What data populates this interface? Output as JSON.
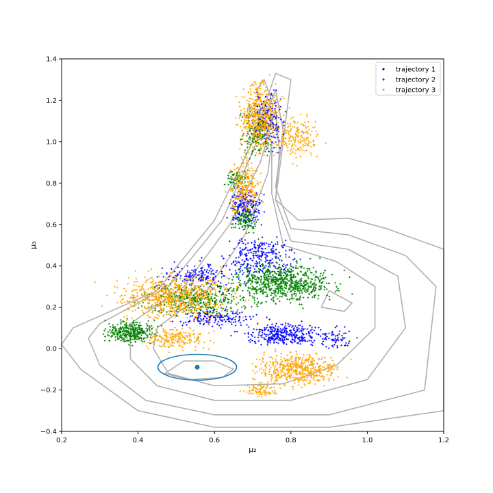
{
  "chart_data": {
    "type": "scatter",
    "xlabel": "μ₂",
    "ylabel": "μ₃",
    "xlim": [
      0.2,
      1.2
    ],
    "ylim": [
      -0.4,
      1.4
    ],
    "xticks": [
      "0.2",
      "0.4",
      "0.6",
      "0.8",
      "1.0",
      "1.2"
    ],
    "yticks": [
      "−0.4",
      "−0.2",
      "0.0",
      "0.2",
      "0.4",
      "0.6",
      "0.8",
      "1.0",
      "1.2",
      "1.4"
    ],
    "xtick_values": [
      0.2,
      0.4,
      0.6,
      0.8,
      1.0,
      1.2
    ],
    "ytick_values": [
      -0.4,
      -0.2,
      0.0,
      0.2,
      0.4,
      0.6,
      0.8,
      1.0,
      1.2,
      1.4
    ],
    "grid": false,
    "legend": {
      "placement": "top-right",
      "entries": [
        {
          "label": "trajectory 1",
          "color": "#0000ff"
        },
        {
          "label": "trajectory 2",
          "color": "#008000"
        },
        {
          "label": "trajectory 3",
          "color": "#ffa500"
        }
      ]
    },
    "background_contours": {
      "color": "#b0b0b0",
      "levels": [
        [
          [
            0.23,
            0.1
          ],
          [
            0.45,
            0.28
          ],
          [
            0.6,
            0.62
          ],
          [
            0.7,
            1.0
          ],
          [
            0.76,
            1.33
          ],
          [
            0.8,
            1.3
          ],
          [
            0.78,
            1.0
          ],
          [
            0.76,
            0.72
          ],
          [
            0.82,
            0.62
          ],
          [
            0.95,
            0.63
          ],
          [
            1.05,
            0.58
          ],
          [
            1.2,
            0.48
          ],
          [
            1.2,
            -0.3
          ],
          [
            0.9,
            -0.38
          ],
          [
            0.6,
            -0.38
          ],
          [
            0.4,
            -0.3
          ],
          [
            0.25,
            -0.1
          ],
          [
            0.2,
            0.02
          ]
        ],
        [
          [
            0.3,
            0.12
          ],
          [
            0.48,
            0.3
          ],
          [
            0.62,
            0.62
          ],
          [
            0.7,
            0.95
          ],
          [
            0.76,
            1.25
          ],
          [
            0.78,
            1.05
          ],
          [
            0.76,
            0.78
          ],
          [
            0.8,
            0.58
          ],
          [
            0.95,
            0.55
          ],
          [
            1.1,
            0.45
          ],
          [
            1.18,
            0.3
          ],
          [
            1.15,
            -0.2
          ],
          [
            0.9,
            -0.32
          ],
          [
            0.6,
            -0.32
          ],
          [
            0.42,
            -0.25
          ],
          [
            0.3,
            -0.08
          ],
          [
            0.27,
            0.05
          ]
        ],
        [
          [
            0.38,
            0.12
          ],
          [
            0.52,
            0.3
          ],
          [
            0.64,
            0.6
          ],
          [
            0.72,
            0.9
          ],
          [
            0.76,
            1.15
          ],
          [
            0.77,
            0.95
          ],
          [
            0.76,
            0.72
          ],
          [
            0.8,
            0.52
          ],
          [
            0.95,
            0.48
          ],
          [
            1.08,
            0.35
          ],
          [
            1.1,
            0.1
          ],
          [
            1.0,
            -0.15
          ],
          [
            0.8,
            -0.25
          ],
          [
            0.6,
            -0.25
          ],
          [
            0.45,
            -0.18
          ],
          [
            0.38,
            -0.05
          ]
        ],
        [
          [
            0.45,
            0.1
          ],
          [
            0.58,
            0.28
          ],
          [
            0.68,
            0.55
          ],
          [
            0.74,
            0.85
          ],
          [
            0.75,
            1.0
          ],
          [
            0.75,
            0.75
          ],
          [
            0.78,
            0.5
          ],
          [
            0.92,
            0.42
          ],
          [
            1.02,
            0.3
          ],
          [
            1.02,
            0.1
          ],
          [
            0.92,
            -0.08
          ],
          [
            0.78,
            -0.17
          ],
          [
            0.6,
            -0.18
          ],
          [
            0.48,
            -0.12
          ],
          [
            0.44,
            0.0
          ]
        ],
        [
          [
            0.9,
            0.28
          ],
          [
            0.96,
            0.22
          ],
          [
            0.94,
            0.18
          ],
          [
            0.88,
            0.2
          ]
        ],
        [
          [
            0.47,
            -0.12
          ],
          [
            0.52,
            -0.06
          ],
          [
            0.6,
            -0.06
          ],
          [
            0.65,
            -0.1
          ],
          [
            0.62,
            -0.14
          ],
          [
            0.53,
            -0.15
          ]
        ],
        [
          [
            0.71,
            1.25
          ],
          [
            0.73,
            1.3
          ],
          [
            0.75,
            1.2
          ],
          [
            0.73,
            1.15
          ]
        ]
      ]
    },
    "series": [
      {
        "name": "trajectory 1",
        "color": "#0000ff",
        "regions": [
          {
            "cx": 0.74,
            "cy": 1.1,
            "rx": 0.04,
            "ry": 0.12,
            "n": 200
          },
          {
            "cx": 0.68,
            "cy": 0.68,
            "rx": 0.04,
            "ry": 0.08,
            "n": 200
          },
          {
            "cx": 0.72,
            "cy": 0.44,
            "rx": 0.08,
            "ry": 0.1,
            "n": 260
          },
          {
            "cx": 0.56,
            "cy": 0.35,
            "rx": 0.1,
            "ry": 0.06,
            "n": 160
          },
          {
            "cx": 0.78,
            "cy": 0.07,
            "rx": 0.1,
            "ry": 0.05,
            "n": 320
          },
          {
            "cx": 0.6,
            "cy": 0.15,
            "rx": 0.1,
            "ry": 0.04,
            "n": 160
          },
          {
            "cx": 0.92,
            "cy": 0.05,
            "rx": 0.04,
            "ry": 0.05,
            "n": 60
          }
        ]
      },
      {
        "name": "trajectory 2",
        "color": "#008000",
        "regions": [
          {
            "cx": 0.71,
            "cy": 1.05,
            "rx": 0.04,
            "ry": 0.12,
            "n": 160
          },
          {
            "cx": 0.68,
            "cy": 0.62,
            "rx": 0.03,
            "ry": 0.06,
            "n": 100
          },
          {
            "cx": 0.78,
            "cy": 0.32,
            "rx": 0.12,
            "ry": 0.09,
            "n": 700
          },
          {
            "cx": 0.55,
            "cy": 0.24,
            "rx": 0.12,
            "ry": 0.07,
            "n": 380
          },
          {
            "cx": 0.38,
            "cy": 0.08,
            "rx": 0.06,
            "ry": 0.05,
            "n": 320
          },
          {
            "cx": 0.66,
            "cy": 0.82,
            "rx": 0.03,
            "ry": 0.04,
            "n": 60
          }
        ]
      },
      {
        "name": "trajectory 3",
        "color": "#ffa500",
        "regions": [
          {
            "cx": 0.72,
            "cy": 1.12,
            "rx": 0.05,
            "ry": 0.16,
            "n": 500
          },
          {
            "cx": 0.82,
            "cy": 1.02,
            "rx": 0.05,
            "ry": 0.1,
            "n": 180
          },
          {
            "cx": 0.68,
            "cy": 0.78,
            "rx": 0.04,
            "ry": 0.14,
            "n": 250
          },
          {
            "cx": 0.5,
            "cy": 0.25,
            "rx": 0.14,
            "ry": 0.1,
            "n": 700
          },
          {
            "cx": 0.82,
            "cy": -0.1,
            "rx": 0.1,
            "ry": 0.07,
            "n": 520
          },
          {
            "cx": 0.5,
            "cy": 0.05,
            "rx": 0.08,
            "ry": 0.05,
            "n": 200
          },
          {
            "cx": 0.72,
            "cy": -0.2,
            "rx": 0.04,
            "ry": 0.03,
            "n": 80
          }
        ]
      }
    ],
    "annotations": {
      "marker": {
        "x": 0.555,
        "y": -0.09,
        "color": "#1f77b4"
      },
      "ellipse": {
        "cx": 0.555,
        "cy": -0.09,
        "rx": 0.103,
        "ry": 0.103,
        "color": "#1f77b4"
      }
    }
  }
}
